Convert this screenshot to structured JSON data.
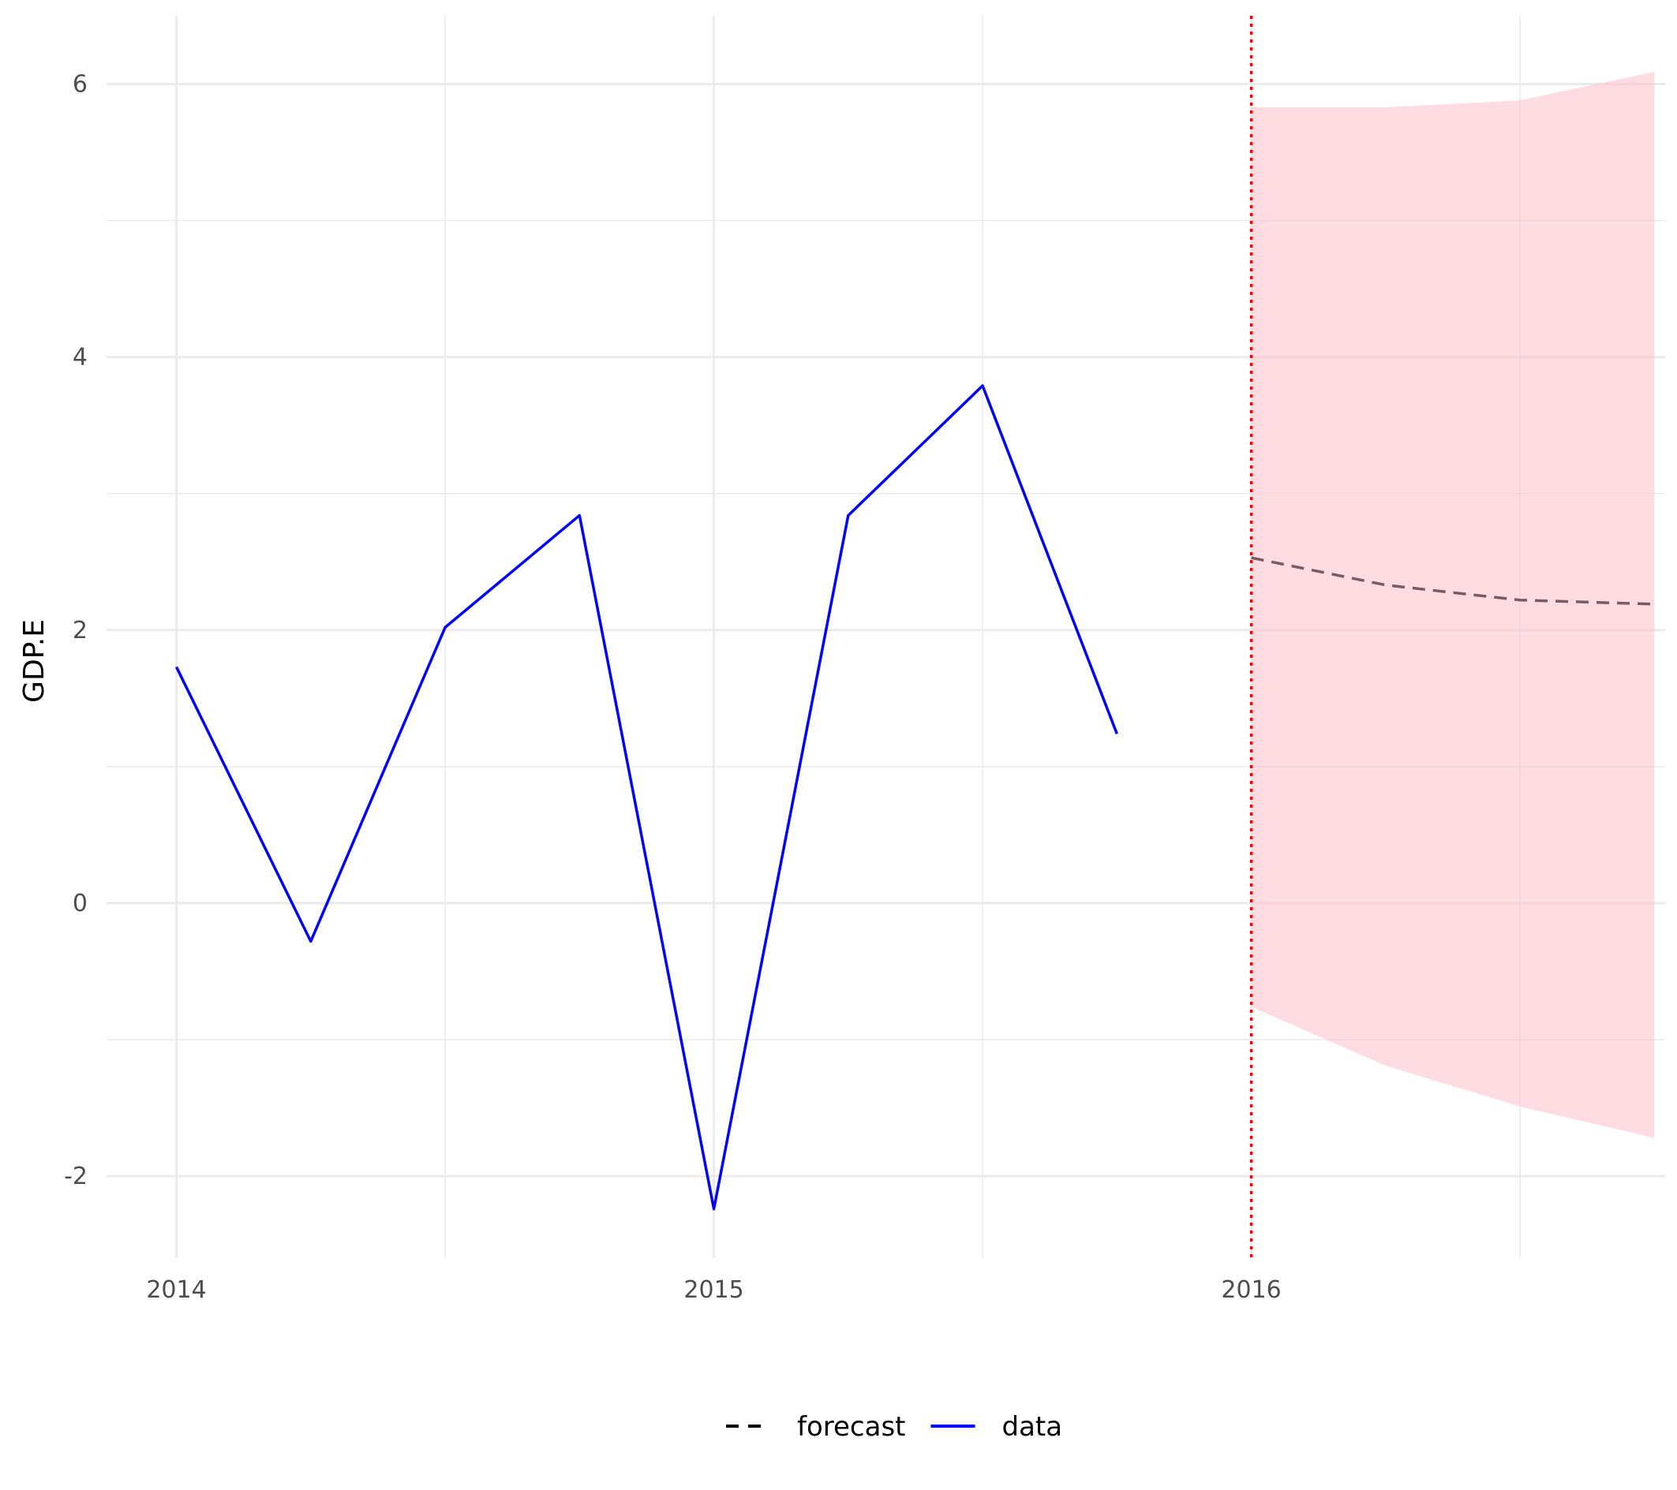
{
  "chart_data": {
    "type": "line",
    "title": "",
    "xlabel": "",
    "ylabel": "GDP.E",
    "xlim": [
      2013.87,
      2016.77
    ],
    "ylim": [
      -2.6,
      6.5
    ],
    "x_ticks": [
      2014,
      2015,
      2016
    ],
    "x_tick_labels": [
      "2014",
      "2015",
      "2016"
    ],
    "x_minor_ticks": [
      2014.5,
      2015.5,
      2016.5
    ],
    "y_ticks": [
      -2,
      0,
      2,
      4,
      6
    ],
    "y_tick_labels": [
      "-2",
      "0",
      "2",
      "4",
      "6"
    ],
    "y_minor_ticks": [
      -1,
      1,
      3,
      5
    ],
    "grid": true,
    "legend_position": "bottom",
    "series": [
      {
        "name": "data",
        "style": "solid",
        "color": "#0000ff",
        "x": [
          2014.0,
          2014.25,
          2014.5,
          2014.75,
          2015.0,
          2015.25,
          2015.5,
          2015.75
        ],
        "y": [
          1.73,
          -0.28,
          2.02,
          2.84,
          -2.24,
          2.84,
          3.79,
          1.24
        ]
      },
      {
        "name": "forecast",
        "style": "dashed",
        "color": "#7a5a63",
        "x": [
          2016.0,
          2016.25,
          2016.5,
          2016.75
        ],
        "y": [
          2.53,
          2.33,
          2.22,
          2.19
        ]
      }
    ],
    "interval": {
      "color": "#ffc0cb",
      "x": [
        2016.0,
        2016.25,
        2016.5,
        2016.75
      ],
      "upper": [
        5.83,
        5.83,
        5.88,
        6.09
      ],
      "lower": [
        -0.76,
        -1.19,
        -1.49,
        -1.72
      ]
    },
    "vline": {
      "x": 2016.0,
      "color": "#ff0000",
      "style": "dotted"
    },
    "legend": [
      {
        "label": "forecast",
        "style": "dashed",
        "color": "#000000"
      },
      {
        "label": "data",
        "style": "solid",
        "color": "#0000ff"
      }
    ]
  }
}
